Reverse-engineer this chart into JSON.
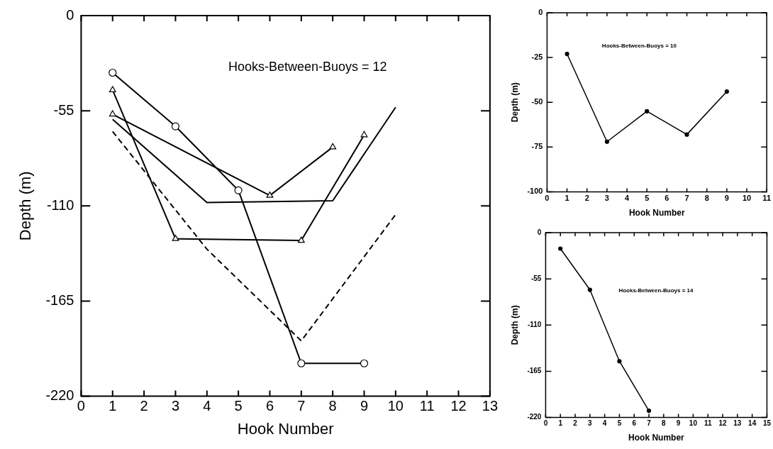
{
  "chart_data": [
    {
      "type": "line",
      "xlabel": "Hook Number",
      "ylabel": "Depth (m)",
      "annotations": [
        "Hooks-Between-Buoys = 12"
      ],
      "xlim": [
        0,
        13
      ],
      "xticks": [
        0,
        1,
        2,
        3,
        4,
        5,
        6,
        7,
        8,
        9,
        10,
        11,
        12,
        13
      ],
      "ylim": [
        -220,
        0
      ],
      "yticks": [
        -220,
        -165,
        -110,
        -55,
        0
      ],
      "series": [
        {
          "color": "#000000",
          "marker": "circle",
          "x": [
            1,
            3,
            5,
            7,
            9
          ],
          "values": [
            -33,
            -64,
            -101,
            -201,
            -201
          ]
        },
        {
          "color": "#000000",
          "marker": "triangle",
          "x": [
            1,
            3,
            7,
            9
          ],
          "values": [
            -43,
            -129,
            -130,
            -69
          ]
        },
        {
          "color": "#000000",
          "marker": "triangle",
          "x": [
            1,
            6,
            8
          ],
          "values": [
            -57,
            -104,
            -76
          ]
        },
        {
          "color": "#000000",
          "marker": "none",
          "x": [
            1,
            4,
            8,
            10
          ],
          "values": [
            -60,
            -108,
            -107,
            -53
          ]
        },
        {
          "color": "#000000",
          "marker": "none",
          "line_style": "dashed",
          "x": [
            1,
            4,
            7,
            10
          ],
          "values": [
            -67,
            -135,
            -188,
            -115
          ]
        }
      ]
    },
    {
      "type": "line",
      "xlabel": "Hook Number",
      "ylabel": "Depth (m)",
      "annotations": [
        "Hooks-Between-Buoys = 10"
      ],
      "marker": "circle",
      "xlim": [
        0,
        11
      ],
      "xticks": [
        0,
        1,
        2,
        3,
        4,
        5,
        6,
        7,
        8,
        9,
        10,
        11
      ],
      "ylim": [
        -100,
        0
      ],
      "yticks": [
        -100,
        -75,
        -50,
        -25,
        0
      ],
      "x": [
        1,
        3,
        5,
        7,
        9
      ],
      "values": [
        -23,
        -72,
        -55,
        -68,
        -44
      ]
    },
    {
      "type": "line",
      "xlabel": "Hook Number",
      "ylabel": "Depth (m)",
      "annotations": [
        "Hooks-Between-Buoys = 14"
      ],
      "marker": "circle",
      "xlim": [
        0,
        15
      ],
      "xticks": [
        0,
        1,
        2,
        3,
        4,
        5,
        6,
        7,
        8,
        9,
        10,
        11,
        12,
        13,
        14,
        15
      ],
      "ylim": [
        -220,
        0
      ],
      "yticks": [
        -220,
        -165,
        -110,
        -55,
        0
      ],
      "x": [
        1,
        3,
        5,
        7
      ],
      "values": [
        -19,
        -68,
        -153,
        -212
      ]
    }
  ]
}
